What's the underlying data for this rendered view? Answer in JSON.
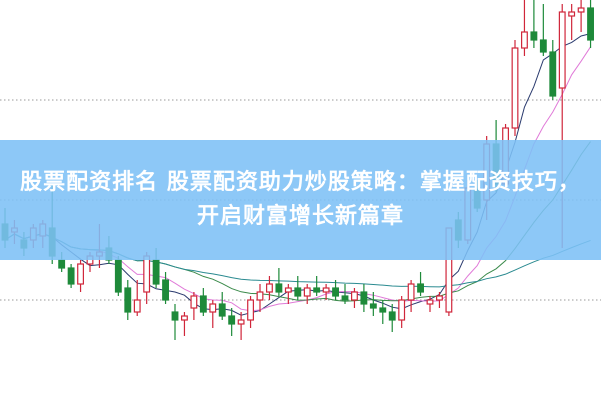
{
  "title": "股票配资排名 股票配资助力炒股策略：掌握配资技巧，开启财富增长新篇章",
  "colors": {
    "up": "#d0263a",
    "down": "#1e8a3a",
    "banner": "#7dc0f6",
    "grid": "#999999",
    "ma": [
      "#2a3a6e",
      "#e07ad8",
      "#3a8a4a",
      "#2a8a90"
    ]
  },
  "chart_data": {
    "type": "candlestick",
    "title": "",
    "xlabel": "",
    "ylabel": "",
    "ylim": [
      0,
      100
    ],
    "grid": "horizontal-dotted",
    "moving_averages": [
      5,
      10,
      20,
      60
    ],
    "ohlc": [
      [
        44,
        48,
        38,
        40
      ],
      [
        42,
        45,
        39,
        43
      ],
      [
        40,
        42,
        36,
        38
      ],
      [
        40,
        44,
        38,
        43
      ],
      [
        41,
        45,
        38,
        44
      ],
      [
        43,
        54,
        34,
        36
      ],
      [
        35,
        37,
        32,
        33
      ],
      [
        33,
        34,
        28,
        29
      ],
      [
        29,
        35,
        27,
        34
      ],
      [
        34,
        37,
        32,
        36
      ],
      [
        36,
        44,
        33,
        37
      ],
      [
        38,
        41,
        34,
        35
      ],
      [
        35,
        36,
        26,
        27
      ],
      [
        28,
        30,
        20,
        22
      ],
      [
        22,
        30,
        21,
        25
      ],
      [
        27,
        37,
        24,
        36
      ],
      [
        35,
        38,
        28,
        29
      ],
      [
        30,
        32,
        24,
        25
      ],
      [
        22,
        24,
        15,
        20
      ],
      [
        20,
        22,
        16,
        21
      ],
      [
        23,
        27,
        20,
        26
      ],
      [
        26,
        28,
        21,
        22
      ],
      [
        22,
        25,
        18,
        24
      ],
      [
        24,
        27,
        20,
        21
      ],
      [
        21,
        23,
        16,
        19
      ],
      [
        19,
        22,
        15,
        20
      ],
      [
        20,
        26,
        18,
        25
      ],
      [
        25,
        29,
        22,
        27
      ],
      [
        27,
        31,
        25,
        29
      ],
      [
        29,
        33,
        26,
        27
      ],
      [
        27,
        29,
        24,
        28
      ],
      [
        28,
        31,
        25,
        26
      ],
      [
        26,
        29,
        24,
        28
      ],
      [
        28,
        31,
        26,
        27
      ],
      [
        27,
        29,
        25,
        28
      ],
      [
        28,
        30,
        25,
        26
      ],
      [
        26,
        29,
        24,
        25
      ],
      [
        25,
        28,
        23,
        27
      ],
      [
        27,
        29,
        22,
        24
      ],
      [
        24,
        27,
        21,
        23
      ],
      [
        23,
        25,
        19,
        22
      ],
      [
        22,
        24,
        17,
        20
      ],
      [
        20,
        26,
        18,
        25
      ],
      [
        25,
        30,
        22,
        29
      ],
      [
        29,
        32,
        26,
        27
      ],
      [
        24,
        26,
        22,
        25
      ],
      [
        25,
        27,
        23,
        26
      ],
      [
        22,
        43,
        21,
        43
      ],
      [
        45,
        47,
        38,
        40
      ],
      [
        40,
        55,
        39,
        53
      ],
      [
        53,
        55,
        47,
        48
      ],
      [
        50,
        66,
        45,
        64
      ],
      [
        64,
        70,
        52,
        54
      ],
      [
        54,
        69,
        53,
        68
      ],
      [
        68,
        90,
        66,
        88
      ],
      [
        88,
        100,
        86,
        92
      ],
      [
        92,
        100,
        88,
        90
      ],
      [
        90,
        99,
        86,
        87
      ],
      [
        87,
        90,
        75,
        76
      ],
      [
        78,
        99,
        38,
        97
      ],
      [
        96,
        99,
        90,
        97
      ],
      [
        97,
        100,
        92,
        98
      ],
      [
        98,
        100,
        88,
        90
      ]
    ]
  }
}
